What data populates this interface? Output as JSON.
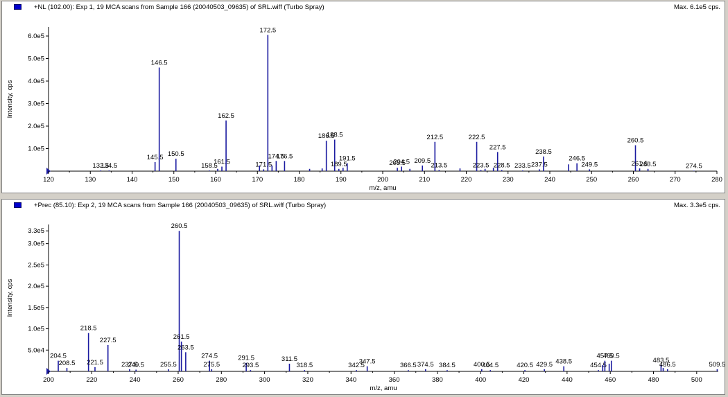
{
  "panels": [
    {
      "id": "top",
      "title": "+NL (102.00): Exp 1, 19 MCA scans from Sample 166 (20040503_09635) of SRL.wiff (Turbo Spray)",
      "max_label": "Max. 6.1e5 cps.",
      "colors": {
        "peak": "#1a1aa0",
        "axis": "#000000"
      }
    },
    {
      "id": "bottom",
      "title": "+Prec (85.10): Exp 2, 19 MCA scans from Sample 166 (20040503_09635) of SRL.wiff (Turbo Spray)",
      "max_label": "Max. 3.3e5 cps.",
      "colors": {
        "peak": "#1a1aa0",
        "axis": "#000000"
      }
    }
  ],
  "chart_data": [
    {
      "type": "bar",
      "xlabel": "m/z, amu",
      "ylabel": "Intensity, cps",
      "xlim": [
        120,
        280
      ],
      "ylim": [
        0,
        640000
      ],
      "x_ticks": [
        120,
        130,
        140,
        150,
        160,
        170,
        180,
        190,
        200,
        210,
        220,
        230,
        240,
        250,
        260,
        270,
        280
      ],
      "y_ticks": [
        {
          "v": 100000,
          "label": "1.0e5"
        },
        {
          "v": 200000,
          "label": "2.0e5"
        },
        {
          "v": 300000,
          "label": "3.0e5"
        },
        {
          "v": 400000,
          "label": "4.0e5"
        },
        {
          "v": 500000,
          "label": "5.0e5"
        },
        {
          "v": 600000,
          "label": "6.0e5"
        }
      ],
      "grid": false,
      "peaks": [
        {
          "x": 132.5,
          "y": 3000,
          "label": "132.5"
        },
        {
          "x": 134.5,
          "y": 3000,
          "label": "134.5"
        },
        {
          "x": 145.5,
          "y": 40000,
          "label": "145.5"
        },
        {
          "x": 146.5,
          "y": 460000,
          "label": "146.5"
        },
        {
          "x": 150.5,
          "y": 55000,
          "label": "150.5"
        },
        {
          "x": 158.5,
          "y": 3000,
          "label": "158.5"
        },
        {
          "x": 160.5,
          "y": 10000,
          "label": ""
        },
        {
          "x": 161.5,
          "y": 20000,
          "label": "161.5"
        },
        {
          "x": 162.5,
          "y": 225000,
          "label": "162.5"
        },
        {
          "x": 170.5,
          "y": 25000,
          "label": ""
        },
        {
          "x": 171.5,
          "y": 8000,
          "label": "171.5"
        },
        {
          "x": 172.5,
          "y": 605000,
          "label": "172.5"
        },
        {
          "x": 173.5,
          "y": 25000,
          "label": ""
        },
        {
          "x": 174.5,
          "y": 45000,
          "label": "174.5"
        },
        {
          "x": 176.5,
          "y": 45000,
          "label": "176.5"
        },
        {
          "x": 182.5,
          "y": 10000,
          "label": ""
        },
        {
          "x": 185.5,
          "y": 12000,
          "label": ""
        },
        {
          "x": 186.5,
          "y": 135000,
          "label": "186.5"
        },
        {
          "x": 188.5,
          "y": 140000,
          "label": "188.5"
        },
        {
          "x": 189.5,
          "y": 10000,
          "label": "189.5"
        },
        {
          "x": 190.5,
          "y": 15000,
          "label": ""
        },
        {
          "x": 191.5,
          "y": 35000,
          "label": "191.5"
        },
        {
          "x": 203.5,
          "y": 15000,
          "label": "203.5"
        },
        {
          "x": 204.5,
          "y": 20000,
          "label": "204.5"
        },
        {
          "x": 206.5,
          "y": 10000,
          "label": ""
        },
        {
          "x": 209.5,
          "y": 25000,
          "label": "209.5"
        },
        {
          "x": 212.5,
          "y": 130000,
          "label": "212.5"
        },
        {
          "x": 213.5,
          "y": 5000,
          "label": "213.5"
        },
        {
          "x": 218.5,
          "y": 12000,
          "label": ""
        },
        {
          "x": 222.5,
          "y": 130000,
          "label": "222.5"
        },
        {
          "x": 223.5,
          "y": 5000,
          "label": "223.5"
        },
        {
          "x": 224.5,
          "y": 10000,
          "label": ""
        },
        {
          "x": 226.5,
          "y": 15000,
          "label": ""
        },
        {
          "x": 227.5,
          "y": 85000,
          "label": "227.5"
        },
        {
          "x": 228.5,
          "y": 5000,
          "label": "228.5"
        },
        {
          "x": 233.5,
          "y": 3000,
          "label": "233.5"
        },
        {
          "x": 237.5,
          "y": 8000,
          "label": "237.5"
        },
        {
          "x": 238.5,
          "y": 65000,
          "label": "238.5"
        },
        {
          "x": 244.5,
          "y": 30000,
          "label": ""
        },
        {
          "x": 246.5,
          "y": 35000,
          "label": "246.5"
        },
        {
          "x": 249.5,
          "y": 8000,
          "label": "249.5"
        },
        {
          "x": 260.5,
          "y": 115000,
          "label": "260.5"
        },
        {
          "x": 261.5,
          "y": 12000,
          "label": "261.5"
        },
        {
          "x": 263.5,
          "y": 10000,
          "label": "263.5"
        },
        {
          "x": 274.5,
          "y": 2000,
          "label": "274.5"
        }
      ]
    },
    {
      "type": "bar",
      "xlabel": "m/z, amu",
      "ylabel": "Intensity, cps",
      "xlim": [
        200,
        510
      ],
      "ylim": [
        0,
        345000
      ],
      "x_ticks": [
        200,
        220,
        240,
        260,
        280,
        300,
        320,
        340,
        360,
        380,
        400,
        420,
        440,
        460,
        480,
        500
      ],
      "y_ticks": [
        {
          "v": 50000,
          "label": "5.0e4"
        },
        {
          "v": 100000,
          "label": "1.0e5"
        },
        {
          "v": 150000,
          "label": "1.5e5"
        },
        {
          "v": 200000,
          "label": "2.0e5"
        },
        {
          "v": 250000,
          "label": "2.5e5"
        },
        {
          "v": 300000,
          "label": "3.0e5"
        },
        {
          "v": 330000,
          "label": "3.3e5"
        }
      ],
      "grid": false,
      "peaks": [
        {
          "x": 204.5,
          "y": 25000,
          "label": "204.5"
        },
        {
          "x": 208.5,
          "y": 8000,
          "label": "208.5"
        },
        {
          "x": 218.5,
          "y": 90000,
          "label": "218.5"
        },
        {
          "x": 221.5,
          "y": 10000,
          "label": "221.5"
        },
        {
          "x": 227.5,
          "y": 62000,
          "label": "227.5"
        },
        {
          "x": 237.5,
          "y": 5000,
          "label": "237.5"
        },
        {
          "x": 240.5,
          "y": 4000,
          "label": "240.5"
        },
        {
          "x": 255.5,
          "y": 5000,
          "label": "255.5"
        },
        {
          "x": 260.5,
          "y": 330000,
          "label": "260.5"
        },
        {
          "x": 261.5,
          "y": 70000,
          "label": "261.5"
        },
        {
          "x": 263.5,
          "y": 45000,
          "label": "263.5"
        },
        {
          "x": 274.5,
          "y": 25000,
          "label": "274.5"
        },
        {
          "x": 275.5,
          "y": 5000,
          "label": "275.5"
        },
        {
          "x": 291.5,
          "y": 20000,
          "label": "291.5"
        },
        {
          "x": 293.5,
          "y": 3000,
          "label": "293.5"
        },
        {
          "x": 311.5,
          "y": 18000,
          "label": "311.5"
        },
        {
          "x": 318.5,
          "y": 3000,
          "label": "318.5"
        },
        {
          "x": 342.5,
          "y": 3000,
          "label": "342.5"
        },
        {
          "x": 347.5,
          "y": 12000,
          "label": "347.5"
        },
        {
          "x": 366.5,
          "y": 3000,
          "label": "366.5"
        },
        {
          "x": 374.5,
          "y": 5000,
          "label": "374.5"
        },
        {
          "x": 384.5,
          "y": 3000,
          "label": "384.5"
        },
        {
          "x": 400.5,
          "y": 5000,
          "label": "400.5"
        },
        {
          "x": 404.5,
          "y": 3000,
          "label": "404.5"
        },
        {
          "x": 420.5,
          "y": 3000,
          "label": "420.5"
        },
        {
          "x": 429.5,
          "y": 5000,
          "label": "429.5"
        },
        {
          "x": 438.5,
          "y": 12000,
          "label": "438.5"
        },
        {
          "x": 454.5,
          "y": 3000,
          "label": "454.5"
        },
        {
          "x": 456.5,
          "y": 15000,
          "label": ""
        },
        {
          "x": 457.5,
          "y": 25000,
          "label": "457.5"
        },
        {
          "x": 459.5,
          "y": 18000,
          "label": ""
        },
        {
          "x": 460.5,
          "y": 25000,
          "label": "460.5"
        },
        {
          "x": 483.5,
          "y": 15000,
          "label": "483.5"
        },
        {
          "x": 484.5,
          "y": 8000,
          "label": ""
        },
        {
          "x": 486.5,
          "y": 5000,
          "label": "486.5"
        },
        {
          "x": 509.5,
          "y": 5000,
          "label": "509.5"
        }
      ]
    }
  ]
}
